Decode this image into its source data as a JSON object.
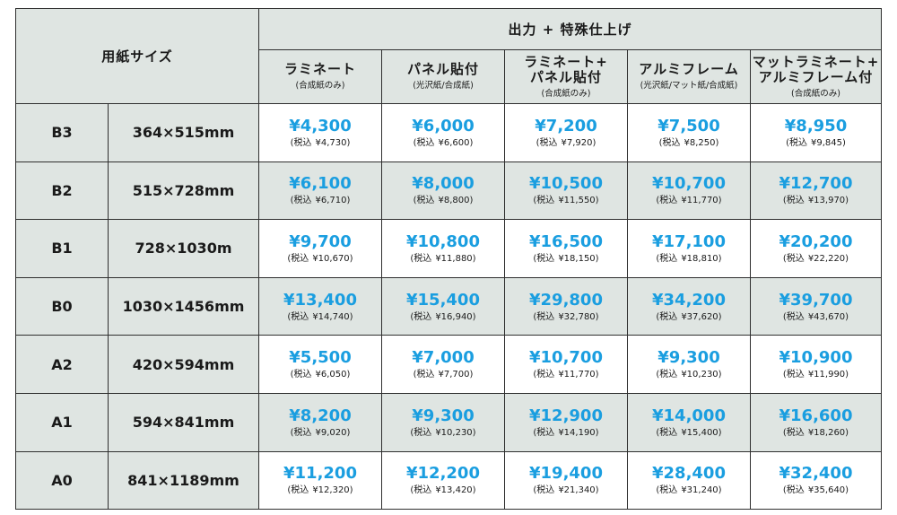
{
  "header": {
    "size_col_label": "用紙サイズ",
    "super_label": "出力 + 特殊仕上げ",
    "options": [
      {
        "name": "ラミネート",
        "note": "(合成紙のみ)"
      },
      {
        "name": "パネル貼付",
        "note": "(光沢紙/合成紙)"
      },
      {
        "name": "ラミネート+\nパネル貼付",
        "note": "(合成紙のみ)"
      },
      {
        "name": "アルミフレーム",
        "note": "(光沢紙/マット紙/合成紙)"
      },
      {
        "name": "マットラミネート+\nアルミフレーム付",
        "note": "(合成紙のみ)"
      }
    ]
  },
  "tax_prefix": "(税込",
  "tax_suffix": ")",
  "rows": [
    {
      "code": "B3",
      "dims": "364×515mm",
      "prices": [
        {
          "price": "¥4,300",
          "tax": "¥4,730"
        },
        {
          "price": "¥6,000",
          "tax": "¥6,600"
        },
        {
          "price": "¥7,200",
          "tax": "¥7,920"
        },
        {
          "price": "¥7,500",
          "tax": "¥8,250"
        },
        {
          "price": "¥8,950",
          "tax": "¥9,845"
        }
      ]
    },
    {
      "code": "B2",
      "dims": "515×728mm",
      "prices": [
        {
          "price": "¥6,100",
          "tax": "¥6,710"
        },
        {
          "price": "¥8,000",
          "tax": "¥8,800"
        },
        {
          "price": "¥10,500",
          "tax": "¥11,550"
        },
        {
          "price": "¥10,700",
          "tax": "¥11,770"
        },
        {
          "price": "¥12,700",
          "tax": "¥13,970"
        }
      ]
    },
    {
      "code": "B1",
      "dims": "728×1030m",
      "prices": [
        {
          "price": "¥9,700",
          "tax": "¥10,670"
        },
        {
          "price": "¥10,800",
          "tax": "¥11,880"
        },
        {
          "price": "¥16,500",
          "tax": "¥18,150"
        },
        {
          "price": "¥17,100",
          "tax": "¥18,810"
        },
        {
          "price": "¥20,200",
          "tax": "¥22,220"
        }
      ]
    },
    {
      "code": "B0",
      "dims": "1030×1456mm",
      "prices": [
        {
          "price": "¥13,400",
          "tax": "¥14,740"
        },
        {
          "price": "¥15,400",
          "tax": "¥16,940"
        },
        {
          "price": "¥29,800",
          "tax": "¥32,780"
        },
        {
          "price": "¥34,200",
          "tax": "¥37,620"
        },
        {
          "price": "¥39,700",
          "tax": "¥43,670"
        }
      ]
    },
    {
      "code": "A2",
      "dims": "420×594mm",
      "prices": [
        {
          "price": "¥5,500",
          "tax": "¥6,050"
        },
        {
          "price": "¥7,000",
          "tax": "¥7,700"
        },
        {
          "price": "¥10,700",
          "tax": "¥11,770"
        },
        {
          "price": "¥9,300",
          "tax": "¥10,230"
        },
        {
          "price": "¥10,900",
          "tax": "¥11,990"
        }
      ]
    },
    {
      "code": "A1",
      "dims": "594×841mm",
      "prices": [
        {
          "price": "¥8,200",
          "tax": "¥9,020"
        },
        {
          "price": "¥9,300",
          "tax": "¥10,230"
        },
        {
          "price": "¥12,900",
          "tax": "¥14,190"
        },
        {
          "price": "¥14,000",
          "tax": "¥15,400"
        },
        {
          "price": "¥16,600",
          "tax": "¥18,260"
        }
      ]
    },
    {
      "code": "A0",
      "dims": "841×1189mm",
      "prices": [
        {
          "price": "¥11,200",
          "tax": "¥12,320"
        },
        {
          "price": "¥12,200",
          "tax": "¥13,420"
        },
        {
          "price": "¥19,400",
          "tax": "¥21,340"
        },
        {
          "price": "¥28,400",
          "tax": "¥31,240"
        },
        {
          "price": "¥32,400",
          "tax": "¥35,640"
        }
      ]
    }
  ]
}
